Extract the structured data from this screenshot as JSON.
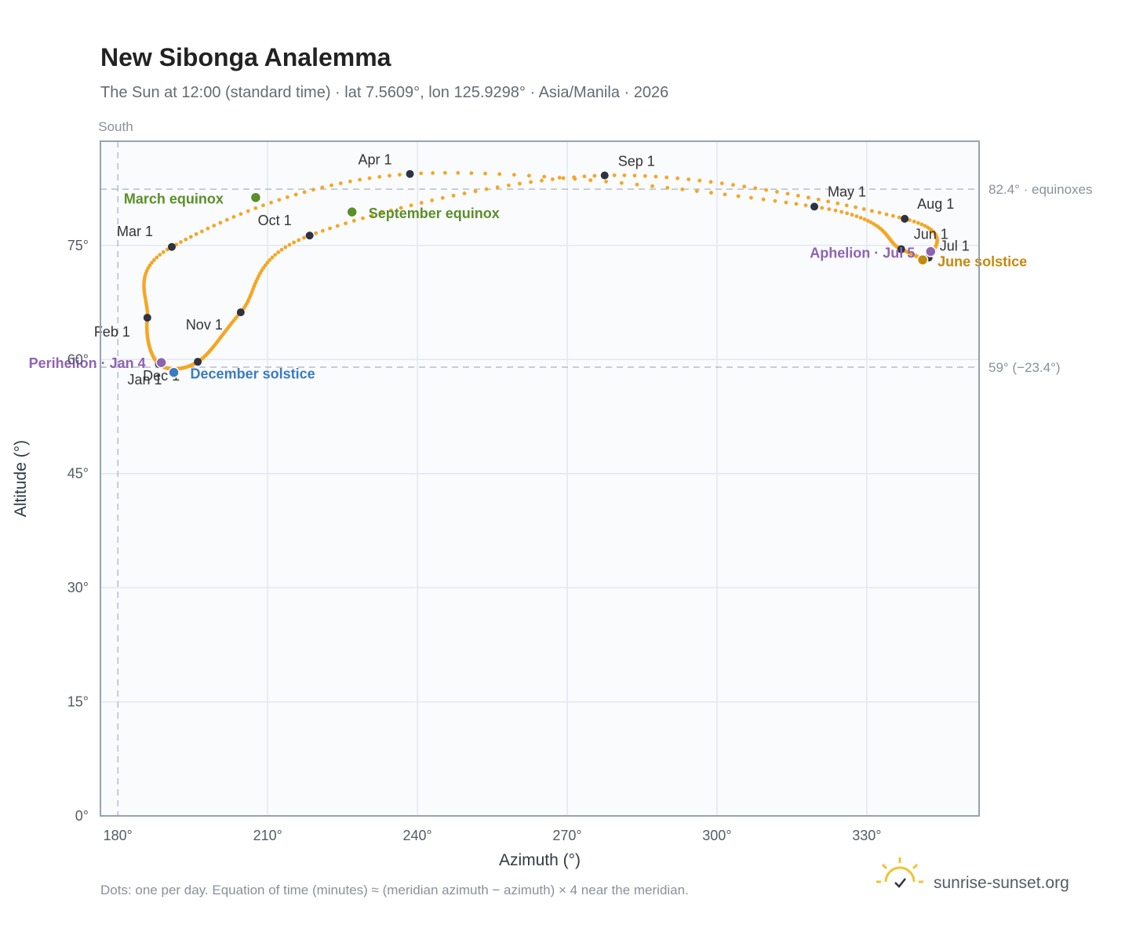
{
  "title": "New Sibonga Analemma",
  "subtitle": "The Sun at 12:00 (standard time) · lat 7.5609°, lon 125.9298° · Asia/Manila · 2026",
  "south_label": "South",
  "footnote": "Dots: one per day. Equation of time (minutes) ≈ (meridian azimuth − azimuth) × 4 near the meridian.",
  "brand": {
    "name": "sunrise-sunset.org",
    "icon": "sun-logo-icon"
  },
  "colors": {
    "path": "#f5a623",
    "month_marker": "#2d3340",
    "equinox": "#5b8f29",
    "june_solstice": "#c48a0c",
    "december_solstice": "#3b7bbf",
    "apsis": "#8e63b3",
    "plot_bg": "#f9fbfd",
    "grid": "#e4e8ee",
    "frame": "#98a2b0"
  },
  "chart_data": {
    "type": "scatter",
    "title": "New Sibonga Analemma",
    "xlabel": "Azimuth (°)",
    "ylabel": "Altitude (°)",
    "xlim": [
      176.5,
      352.5
    ],
    "ylim": [
      0,
      88.7
    ],
    "xticks": [
      180,
      210,
      240,
      270,
      300,
      330
    ],
    "yticks": [
      0,
      15,
      30,
      45,
      60,
      75
    ],
    "x_tick_labels": [
      "180°",
      "210°",
      "240°",
      "270°",
      "300°",
      "330°"
    ],
    "y_tick_labels": [
      "0°",
      "15°",
      "30°",
      "45°",
      "60°",
      "75°"
    ],
    "grid": true,
    "reference_lines": [
      {
        "axis": "y",
        "value": 82.4,
        "label": "82.4° · equinoxes"
      },
      {
        "axis": "y",
        "value": 59.0,
        "label": "59° (−23.4°)"
      },
      {
        "axis": "x",
        "value": 180,
        "label": "South"
      }
    ],
    "month_markers": [
      {
        "label": "Jan 1",
        "az": 188.2,
        "alt": 59.4
      },
      {
        "label": "Feb 1",
        "az": 185.9,
        "alt": 65.5
      },
      {
        "label": "Mar 1",
        "az": 190.8,
        "alt": 74.8
      },
      {
        "label": "Apr 1",
        "az": 238.5,
        "alt": 84.4
      },
      {
        "label": "May 1",
        "az": 319.5,
        "alt": 80.1
      },
      {
        "label": "Jun 1",
        "az": 336.9,
        "alt": 74.5
      },
      {
        "label": "Jul 1",
        "az": 342.4,
        "alt": 73.4
      },
      {
        "label": "Aug 1",
        "az": 337.6,
        "alt": 78.5
      },
      {
        "label": "Sep 1",
        "az": 277.5,
        "alt": 84.2
      },
      {
        "label": "Oct 1",
        "az": 218.4,
        "alt": 76.3
      },
      {
        "label": "Nov 1",
        "az": 204.6,
        "alt": 66.2
      },
      {
        "label": "Dec 1",
        "az": 196.0,
        "alt": 59.7
      }
    ],
    "events": [
      {
        "label": "March equinox",
        "az": 207.6,
        "alt": 81.3,
        "color_key": "equinox"
      },
      {
        "label": "June solstice",
        "az": 341.2,
        "alt": 73.1,
        "color_key": "june_solstice"
      },
      {
        "label": "September equinox",
        "az": 226.9,
        "alt": 79.4,
        "color_key": "equinox"
      },
      {
        "label": "December solstice",
        "az": 191.2,
        "alt": 58.3,
        "color_key": "december_solstice"
      },
      {
        "label": "Perihelion · Jan 4",
        "az": 188.7,
        "alt": 59.6,
        "color_key": "apsis"
      },
      {
        "label": "Aphelion · Jul 5",
        "az": 342.8,
        "alt": 74.2,
        "color_key": "apsis"
      }
    ]
  }
}
